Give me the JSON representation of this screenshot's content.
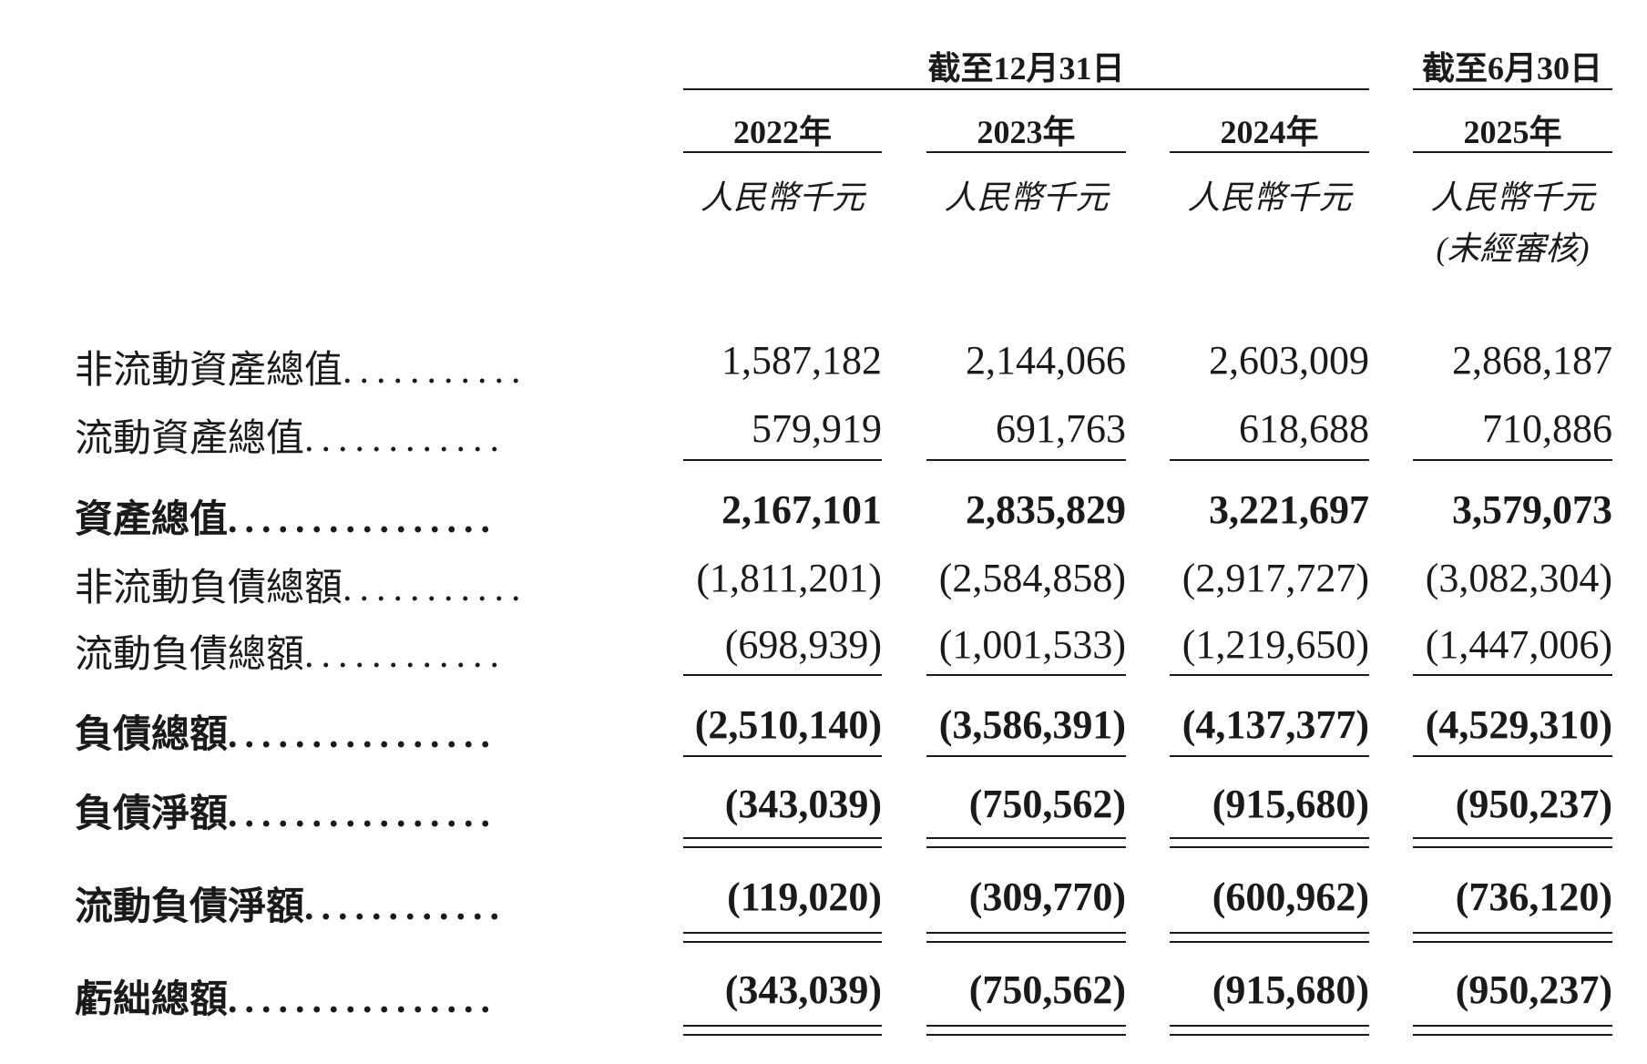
{
  "header": {
    "group_dec31": "截至12月31日",
    "group_jun30": "截至6月30日",
    "columns": [
      {
        "year": "2022年",
        "unit": "人民幣千元",
        "note": ""
      },
      {
        "year": "2023年",
        "unit": "人民幣千元",
        "note": ""
      },
      {
        "year": "2024年",
        "unit": "人民幣千元",
        "note": ""
      },
      {
        "year": "2025年",
        "unit": "人民幣千元",
        "note": "(未經審核)"
      }
    ]
  },
  "rows": [
    {
      "label": "非流動資產總值",
      "dots": "...........",
      "bold": false,
      "values": [
        "1,587,182",
        "2,144,066",
        "2,603,009",
        "2,868,187"
      ]
    },
    {
      "label": "流動資產總值",
      "dots": "............",
      "bold": false,
      "values": [
        "579,919",
        "691,763",
        "618,688",
        "710,886"
      ]
    },
    {
      "label": "資產總值",
      "dots": "................",
      "bold": true,
      "values": [
        "2,167,101",
        "2,835,829",
        "3,221,697",
        "3,579,073"
      ]
    },
    {
      "label": "非流動負債總額",
      "dots": "...........",
      "bold": false,
      "values": [
        "(1,811,201)",
        "(2,584,858)",
        "(2,917,727)",
        "(3,082,304)"
      ]
    },
    {
      "label": "流動負債總額",
      "dots": "............",
      "bold": false,
      "values": [
        "(698,939)",
        "(1,001,533)",
        "(1,219,650)",
        "(1,447,006)"
      ]
    },
    {
      "label": "負債總額",
      "dots": "................",
      "bold": true,
      "values": [
        "(2,510,140)",
        "(3,586,391)",
        "(4,137,377)",
        "(4,529,310)"
      ]
    },
    {
      "label": "負債淨額",
      "dots": "................",
      "bold": true,
      "values": [
        "(343,039)",
        "(750,562)",
        "(915,680)",
        "(950,237)"
      ]
    },
    {
      "label": "流動負債淨額",
      "dots": "............",
      "bold": true,
      "values": [
        "(119,020)",
        "(309,770)",
        "(600,962)",
        "(736,120)"
      ]
    },
    {
      "label": "虧絀總額",
      "dots": "................",
      "bold": true,
      "values": [
        "(343,039)",
        "(750,562)",
        "(915,680)",
        "(950,237)"
      ]
    }
  ]
}
